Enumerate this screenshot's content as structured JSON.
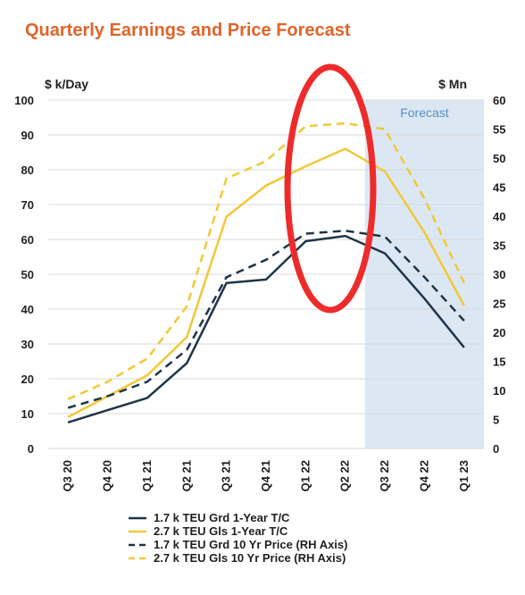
{
  "colors": {
    "title": "#e0642a",
    "navy": "#1f3449",
    "gold": "#f2c836",
    "grid": "#d9d9d9",
    "forecast_fill": "#dbe8f4",
    "forecast_text": "#5b8dc4",
    "highlight": "#ee2b2b"
  },
  "chart_data": {
    "type": "line",
    "title": "Quarterly Earnings and Price Forecast",
    "ylabel_left": "$ k/Day",
    "ylabel_right": "$ Mn",
    "ylim_left": [
      0,
      100
    ],
    "ylim_right": [
      0,
      60
    ],
    "yticks_left": [
      "0",
      "10",
      "20",
      "30",
      "40",
      "50",
      "60",
      "70",
      "80",
      "90",
      "100"
    ],
    "yticks_right": [
      "0",
      "5",
      "10",
      "15",
      "20",
      "25",
      "30",
      "35",
      "40",
      "45",
      "50",
      "55",
      "60"
    ],
    "categories": [
      "Q3 20",
      "Q4 20",
      "Q1 21",
      "Q2 21",
      "Q3 21",
      "Q4 21",
      "Q1 22",
      "Q2 22",
      "Q3 22",
      "Q4 22",
      "Q1 23"
    ],
    "forecast_label": "Forecast",
    "forecast_start": "Q2 22",
    "grid": true,
    "legend_position": "bottom",
    "series": [
      {
        "name": "1.7 k TEU Grd 1-Year T/C",
        "axis": "left",
        "style": "solid",
        "color": "navy",
        "values": [
          7.5,
          11,
          14.5,
          24.5,
          47.5,
          48.5,
          59.5,
          61,
          56,
          43,
          29
        ]
      },
      {
        "name": "2.7 k TEU Gls 1-Year T/C",
        "axis": "left",
        "style": "solid",
        "color": "gold",
        "values": [
          9,
          15,
          21,
          32,
          66.5,
          75.5,
          81,
          86,
          79.5,
          62,
          41
        ]
      },
      {
        "name": "1.7 k TEU Grd 10 Yr Price (RH Axis)",
        "axis": "right",
        "style": "dashed",
        "color": "navy",
        "values": [
          7,
          9,
          11.5,
          17,
          29.5,
          32.5,
          37,
          37.5,
          36.5,
          29.5,
          22
        ]
      },
      {
        "name": "2.7 k TEU Gls 10 Yr Price (RH Axis)",
        "axis": "right",
        "style": "dashed",
        "color": "gold",
        "values": [
          8.5,
          11.5,
          15.5,
          24.5,
          46.5,
          49.5,
          55.5,
          56,
          55,
          43,
          28.5
        ]
      }
    ]
  }
}
